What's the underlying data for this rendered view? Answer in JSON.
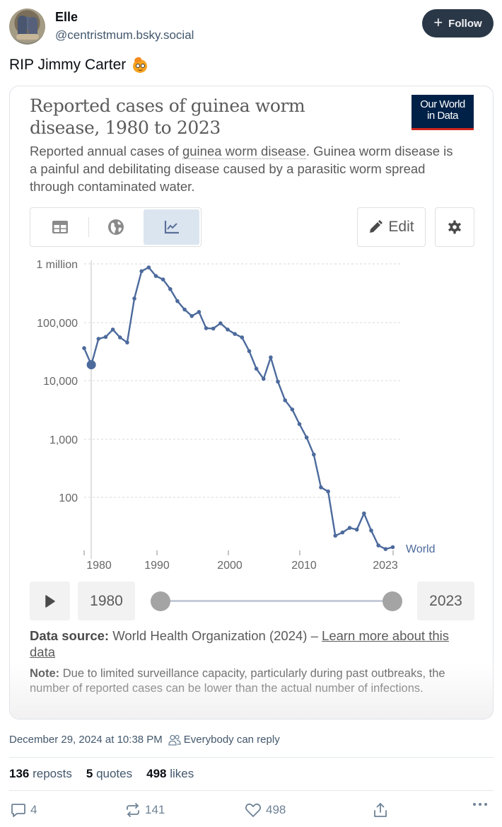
{
  "post": {
    "author": {
      "display_name": "Elle",
      "handle": "@centristmum.bsky.social",
      "avatar_icon": "avatar-photo-shoes"
    },
    "follow_button": {
      "icon": "plus-icon",
      "label": "Follow"
    },
    "text": "RIP Jimmy Carter",
    "emoji": "peanut-face-emoji",
    "timestamp": "December 29, 2024 at 10:38 PM",
    "reply_setting": {
      "icon": "people-icon",
      "label": "Everybody can reply"
    },
    "stats": {
      "reposts": {
        "count": "136",
        "label": "reposts"
      },
      "quotes": {
        "count": "5",
        "label": "quotes"
      },
      "likes": {
        "count": "498",
        "label": "likes"
      }
    },
    "actions": {
      "reply": {
        "icon": "comment-icon",
        "count": "4"
      },
      "repost": {
        "icon": "repost-icon",
        "count": "141"
      },
      "like": {
        "icon": "heart-icon",
        "count": "498"
      },
      "share": {
        "icon": "share-icon"
      },
      "more": {
        "icon": "more-icon"
      }
    }
  },
  "embed": {
    "title": "Reported cases of guinea worm disease, 1980 to 2023",
    "logo": {
      "line1": "Our World",
      "line2": "in Data",
      "bg": "#002147",
      "accent": "#ce261e"
    },
    "subtitle_pre": "Reported annual cases of ",
    "subtitle_link": "guinea worm disease",
    "subtitle_post": ". Guinea worm disease is a painful and debilitating disease caused by a parasitic worm spread through contaminated water.",
    "view_tabs": [
      {
        "icon": "table-icon",
        "active": false
      },
      {
        "icon": "globe-icon",
        "active": false
      },
      {
        "icon": "line-chart-icon",
        "active": true
      }
    ],
    "edit_button": {
      "icon": "pencil-icon",
      "label": "Edit"
    },
    "settings_button": {
      "icon": "gear-icon"
    },
    "timeline": {
      "play_icon": "play-icon",
      "start_year": "1980",
      "end_year": "2023"
    },
    "source_label": "Data source:",
    "source_text": " World Health Organization (2024) – ",
    "source_link": "Learn more about this data",
    "note_label": "Note:",
    "note_text": " Due to limited surveillance capacity, particularly during past outbreaks, the number of reported cases can be lower than the actual number of infections."
  },
  "chart_data": {
    "type": "line",
    "title": "Reported cases of guinea worm disease, 1980 to 2023",
    "subtitle": "Reported annual cases of guinea worm disease. Guinea worm disease is a painful and debilitating disease caused by a parasitic worm spread through contaminated water.",
    "xlabel": "",
    "ylabel": "",
    "yscale": "log",
    "ylim": [
      10,
      1000000
    ],
    "y_ticks": [
      {
        "value": 1000000,
        "label": "1 million"
      },
      {
        "value": 100000,
        "label": "100,000"
      },
      {
        "value": 10000,
        "label": "10,000"
      },
      {
        "value": 1000,
        "label": "1,000"
      },
      {
        "value": 100,
        "label": "100"
      }
    ],
    "x_ticks": [
      "1980",
      "1990",
      "2000",
      "2010",
      "2023"
    ],
    "grid": "horizontal dashed",
    "legend": "inline end label",
    "highlighted_point": {
      "year": 1981
    },
    "line_color": "#4c6a9c",
    "series": [
      {
        "name": "World",
        "x": [
          1980,
          1981,
          1982,
          1983,
          1984,
          1985,
          1986,
          1987,
          1988,
          1989,
          1990,
          1991,
          1992,
          1993,
          1994,
          1995,
          1996,
          1997,
          1998,
          1999,
          2000,
          2001,
          2002,
          2003,
          2004,
          2005,
          2006,
          2007,
          2008,
          2009,
          2010,
          2011,
          2012,
          2013,
          2014,
          2015,
          2016,
          2017,
          2018,
          2019,
          2020,
          2021,
          2022,
          2023
        ],
        "values": [
          36000,
          18700,
          52000,
          56000,
          75000,
          55000,
          45000,
          255000,
          750000,
          870000,
          620000,
          540000,
          370000,
          230000,
          165000,
          128000,
          150000,
          79000,
          78000,
          96000,
          75000,
          63000,
          55000,
          32000,
          16000,
          10700,
          25000,
          9600,
          4600,
          3200,
          1800,
          1060,
          540,
          148,
          126,
          22,
          25,
          30,
          28,
          53,
          27,
          15,
          13,
          14
        ]
      }
    ]
  }
}
